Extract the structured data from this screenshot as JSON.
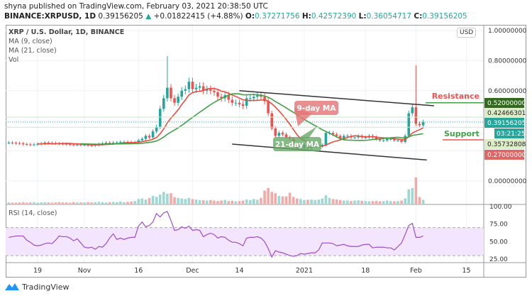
{
  "header": {
    "publisher": "shyna published on TradingView.com, February 03, 2021 20:38:50 UTC",
    "symbol": "BINANCE:XRPUSD, 1D",
    "last": "0.39156205",
    "change": "+0.01822415 (+4.88%)",
    "o_label": "O:",
    "open": "0.37271756",
    "h_label": "H:",
    "high": "0.42572390",
    "l_label": "L:",
    "low": "0.36054717",
    "c_label": "C:",
    "close": "0.39156205"
  },
  "legend": {
    "title": "XRP / U.S. Dollar, 1D, BINANCE",
    "ma9": "MA (9, close)",
    "ma21": "MA (21, close)",
    "vol": "Vol",
    "rsi": "RSI (14, close)"
  },
  "currency": "USD",
  "brand": "TradingView",
  "colors": {
    "up": "#26a69a",
    "down": "#ef5350",
    "ma9": "#f0493e",
    "ma21": "#43a047",
    "rsi": "#9c4dcc",
    "resistance": "#ef5350",
    "support": "#43a047"
  },
  "chart_data": {
    "type": "candlestick",
    "start_date": "2020-10-11",
    "closes": [
      0.255,
      0.253,
      0.252,
      0.25,
      0.245,
      0.243,
      0.241,
      0.243,
      0.246,
      0.25,
      0.255,
      0.253,
      0.252,
      0.25,
      0.248,
      0.247,
      0.245,
      0.242,
      0.24,
      0.242,
      0.24,
      0.24,
      0.238,
      0.235,
      0.24,
      0.245,
      0.25,
      0.255,
      0.252,
      0.255,
      0.256,
      0.26,
      0.26,
      0.258,
      0.255,
      0.257,
      0.27,
      0.28,
      0.3,
      0.29,
      0.33,
      0.36,
      0.48,
      0.55,
      0.62,
      0.55,
      0.52,
      0.56,
      0.6,
      0.61,
      0.66,
      0.61,
      0.62,
      0.63,
      0.6,
      0.61,
      0.6,
      0.59,
      0.56,
      0.55,
      0.57,
      0.54,
      0.52,
      0.52,
      0.51,
      0.5,
      0.55,
      0.55,
      0.56,
      0.57,
      0.56,
      0.53,
      0.45,
      0.35,
      0.3,
      0.32,
      0.31,
      0.29,
      0.28,
      0.25,
      0.22,
      0.22,
      0.24,
      0.22,
      0.23,
      0.23,
      0.23,
      0.24,
      0.32,
      0.32,
      0.31,
      0.3,
      0.28,
      0.3,
      0.3,
      0.29,
      0.29,
      0.3,
      0.29,
      0.29,
      0.3,
      0.29,
      0.28,
      0.27,
      0.27,
      0.28,
      0.28,
      0.27,
      0.27,
      0.26,
      0.3,
      0.45,
      0.49,
      0.38,
      0.37,
      0.3916
    ],
    "notable_highs": {
      "2020-11-24": 0.83,
      "2021-02-01": 0.77
    },
    "volume_relative": [
      5,
      4,
      4,
      5,
      6,
      4,
      5,
      6,
      4,
      5,
      6,
      5,
      4,
      5,
      6,
      5,
      5,
      4,
      6,
      5,
      5,
      5,
      6,
      5,
      6,
      7,
      6,
      5,
      6,
      7,
      6,
      8,
      6,
      7,
      8,
      10,
      18,
      20,
      16,
      22,
      30,
      26,
      35,
      45,
      38,
      40,
      25,
      22,
      20,
      18,
      22,
      18,
      16,
      14,
      13,
      12,
      14,
      12,
      10,
      12,
      14,
      10,
      11,
      9,
      10,
      12,
      16,
      14,
      18,
      15,
      22,
      50,
      60,
      45,
      40,
      30,
      28,
      28,
      42,
      26,
      20,
      18,
      14,
      15,
      16,
      14,
      16,
      20,
      32,
      22,
      18,
      16,
      14,
      12,
      12,
      10,
      12,
      13,
      11,
      10,
      9,
      10,
      11,
      9,
      10,
      12,
      10,
      9,
      10,
      12,
      20,
      55,
      60,
      100,
      25,
      15
    ],
    "rsi": [
      56,
      57,
      58,
      58,
      58,
      52,
      49,
      45,
      44,
      45,
      47,
      48,
      47,
      52,
      58,
      57,
      57,
      55,
      51,
      54,
      48,
      42,
      41,
      42,
      39,
      43,
      42,
      47,
      55,
      61,
      53,
      55,
      53,
      55,
      56,
      56,
      72,
      78,
      71,
      73,
      78,
      90,
      85,
      91,
      93,
      80,
      66,
      67,
      71,
      69,
      72,
      66,
      67,
      66,
      57,
      60,
      62,
      60,
      55,
      57,
      56,
      52,
      49,
      49,
      47,
      44,
      55,
      56,
      56,
      57,
      55,
      50,
      40,
      28,
      37,
      35,
      34,
      32,
      30,
      29,
      30,
      33,
      32,
      33,
      34,
      34,
      38,
      48,
      48,
      48,
      47,
      44,
      45,
      46,
      44,
      43,
      43,
      43,
      45,
      46,
      46,
      41,
      42,
      42,
      42,
      41,
      41,
      38,
      43,
      48,
      60,
      73,
      76,
      56,
      56,
      58
    ],
    "moving_averages": [
      9,
      21
    ],
    "trendlines": [
      {
        "from": [
          "2020-12-14",
          0.6
        ],
        "to": [
          "2021-02-06",
          0.5
        ]
      },
      {
        "from": [
          "2020-12-12",
          0.245
        ],
        "to": [
          "2021-02-04",
          0.14
        ]
      }
    ],
    "price_axis": {
      "ticks": [
        "1.00000000",
        "0.80000000",
        "0.60000000",
        "0.00000000"
      ],
      "range": [
        -0.15,
        1.02
      ]
    },
    "price_labels": [
      {
        "value": 0.52,
        "text": "0.52000000",
        "kind": "resistance"
      },
      {
        "value": 0.42466301,
        "text": "0.42466301",
        "kind": "high"
      },
      {
        "value": 0.39156205,
        "text": "0.39156205",
        "kind": "last"
      },
      {
        "value": 0.35732808,
        "text": "0.35732808",
        "kind": "low"
      },
      {
        "value": 0.27,
        "text": "0.27000000",
        "kind": "support"
      }
    ],
    "countdown": "03:21:25",
    "annotations": {
      "resistance": "Resistance",
      "support": "Support",
      "ma9": "9-day MA",
      "ma21": "21-day MA"
    },
    "rsi_axis": {
      "ticks": [
        "100.00",
        "75.00",
        "50.00",
        "25.00"
      ],
      "band": [
        30,
        70
      ]
    },
    "time_axis": {
      "ticks": [
        {
          "label": "19",
          "date": "2020-10-19"
        },
        {
          "label": "Nov",
          "date": "2020-11-01"
        },
        {
          "label": "16",
          "date": "2020-11-16"
        },
        {
          "label": "Dec",
          "date": "2020-12-01"
        },
        {
          "label": "14",
          "date": "2020-12-14"
        },
        {
          "label": "2021",
          "date": "2021-01-01"
        },
        {
          "label": "18",
          "date": "2021-01-18"
        },
        {
          "label": "Feb",
          "date": "2021-02-01"
        },
        {
          "label": "15",
          "date": "2021-02-15"
        }
      ]
    }
  }
}
